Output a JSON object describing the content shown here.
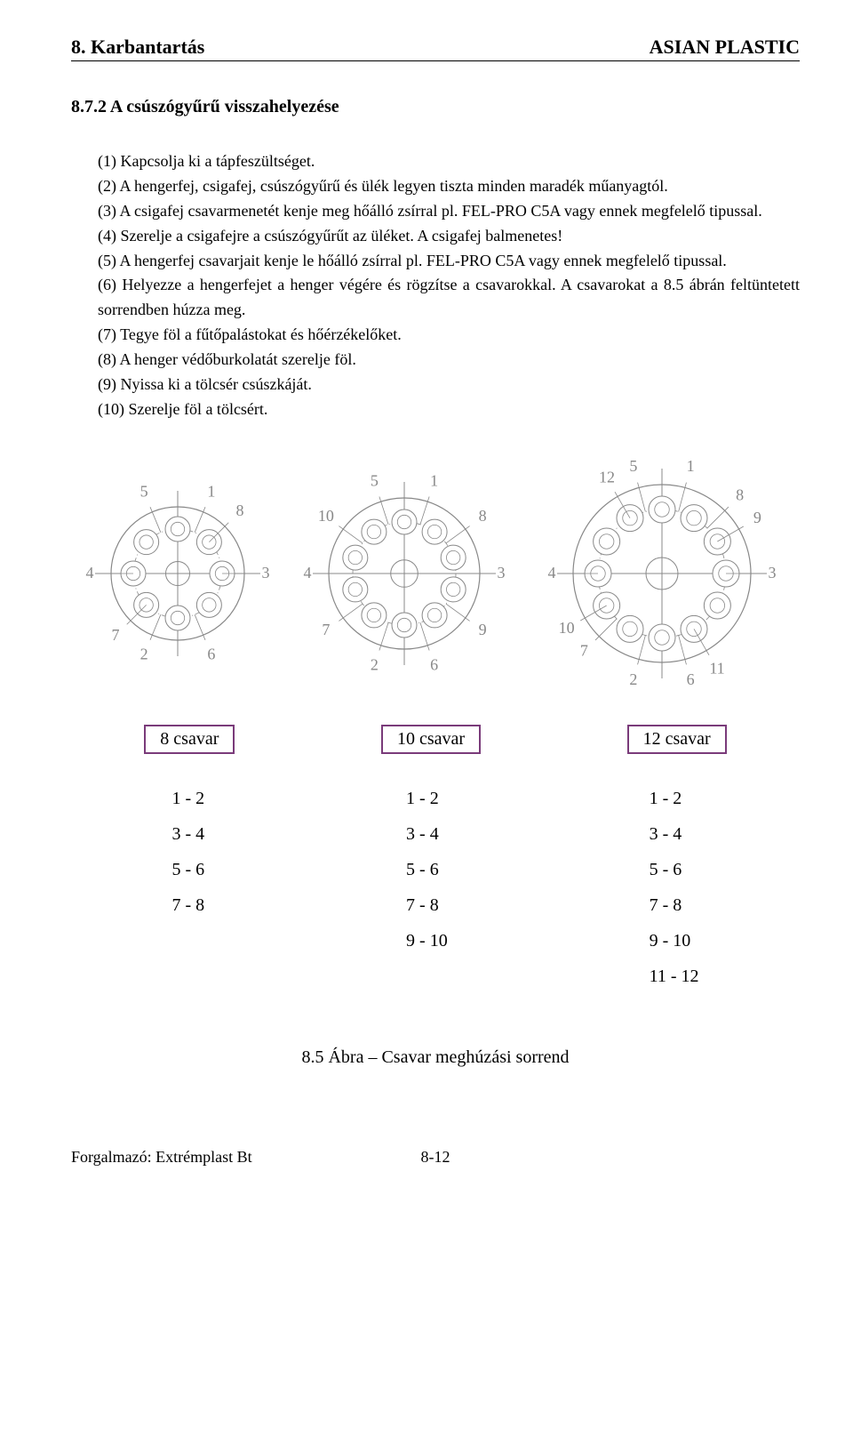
{
  "header": {
    "left": "8.  Karbantartás",
    "right": "ASIAN PLASTIC"
  },
  "section_title": "8.7.2 A csúszógyűrű visszahelyezése",
  "steps": [
    "(1) Kapcsolja ki a tápfeszültséget.",
    "(2) A hengerfej, csigafej, csúszógyűrű és ülék legyen tiszta minden maradék műanyagtól.",
    "(3) A csigafej csavarmenetét kenje meg hőálló zsírral pl. FEL-PRO C5A vagy ennek megfelelő tipussal.",
    "(4) Szerelje a csigafejre a csúszógyűrűt az üléket. A csigafej balmenetes!",
    "(5) A hengerfej csavarjait kenje le hőálló zsírral pl. FEL-PRO C5A vagy ennek megfelelő tipussal.",
    "(6) Helyezze a hengerfejet a henger végére és rögzítse a csavarokkal. A csavarokat a 8.5 ábrán feltüntetett sorrendben húzza meg.",
    "(7) Tegye föl a fűtőpalástokat és hőérzékelőket.",
    "(8) A henger védőburkolatát szerelje föl.",
    "(9) Nyissa ki a tölcsér csúszkáját.",
    "(10) Szerelje föl a tölcsért."
  ],
  "diagrams": {
    "bolt8": {
      "count": 8,
      "outer_r": 75,
      "bolt_ring_r": 50,
      "bolt_r": 14,
      "labels": [
        "1",
        "2",
        "3",
        "4",
        "5",
        "6",
        "7",
        "8"
      ],
      "angles_deg": [
        67.5,
        247.5,
        0,
        180,
        112.5,
        292.5,
        225,
        45
      ],
      "stroke": "#888888",
      "fill": "#ffffff",
      "label_color": "#888888",
      "fontsize": 18
    },
    "bolt10": {
      "count": 10,
      "outer_r": 85,
      "bolt_ring_r": 58,
      "bolt_r": 14,
      "labels": [
        "1",
        "2",
        "3",
        "4",
        "5",
        "6",
        "7",
        "8",
        "9",
        "10"
      ],
      "angles_deg": [
        72,
        252,
        0,
        180,
        108,
        288,
        216,
        36,
        324,
        144
      ],
      "stroke": "#888888",
      "fill": "#ffffff",
      "label_color": "#888888",
      "fontsize": 18
    },
    "bolt12": {
      "count": 12,
      "outer_r": 100,
      "bolt_ring_r": 72,
      "bolt_r": 15,
      "labels": [
        "1",
        "2",
        "3",
        "4",
        "5",
        "6",
        "7",
        "8",
        "9",
        "10",
        "11",
        "12"
      ],
      "angles_deg": [
        75,
        255,
        0,
        180,
        105,
        285,
        225,
        45,
        30,
        210,
        300,
        120
      ],
      "stroke": "#888888",
      "fill": "#ffffff",
      "label_color": "#888888",
      "fontsize": 18
    }
  },
  "label_boxes": [
    "8 csavar",
    "10 csavar",
    "12 csavar"
  ],
  "label_box_border": "#7a3b7a",
  "sequences": {
    "col1": [
      "1 - 2",
      "3 - 4",
      "5 - 6",
      "7 - 8"
    ],
    "col2": [
      "1 - 2",
      "3 - 4",
      "5 - 6",
      "7 - 8",
      "9 - 10"
    ],
    "col3": [
      "1 - 2",
      "3 - 4",
      "5 - 6",
      "7 - 8",
      "9 - 10",
      "11 - 12"
    ]
  },
  "figure_caption": "8.5 Ábra – Csavar meghúzási sorrend",
  "footer": {
    "left": "Forgalmazó: Extrémplast Bt",
    "page": "8-12"
  }
}
